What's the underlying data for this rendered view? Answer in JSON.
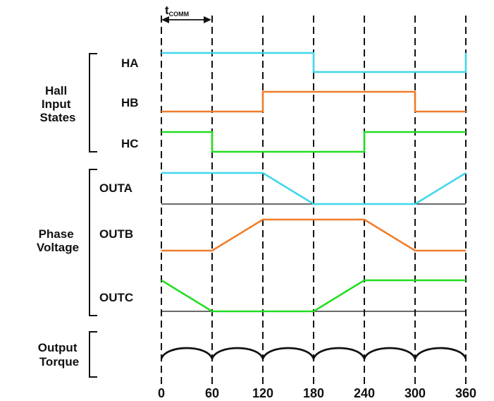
{
  "title_marker": {
    "t": "t",
    "sub": "COMM"
  },
  "x_ticks": [
    "0",
    "60",
    "120",
    "180",
    "240",
    "300",
    "360"
  ],
  "groups": {
    "hall": [
      "Hall",
      "Input",
      "States"
    ],
    "phase": [
      "Phase",
      "Voltage"
    ],
    "torque": [
      "Output",
      "Torque"
    ]
  },
  "signals": {
    "ha": {
      "label": "HA",
      "color": "#3fd7ec"
    },
    "hb": {
      "label": "HB",
      "color": "#f07c2a"
    },
    "hc": {
      "label": "HC",
      "color": "#22dd22"
    },
    "outa": {
      "label": "OUTA",
      "color": "#3fd7ec"
    },
    "outb": {
      "label": "OUTB",
      "color": "#f07c2a"
    },
    "outc": {
      "label": "OUTC",
      "color": "#22dd22"
    }
  },
  "waveforms": {
    "ha": [
      [
        0,
        1
      ],
      [
        180,
        1
      ],
      [
        180,
        0
      ],
      [
        360,
        0
      ],
      [
        360,
        1
      ]
    ],
    "hb": [
      [
        0,
        0
      ],
      [
        120,
        0
      ],
      [
        120,
        1
      ],
      [
        300,
        1
      ],
      [
        300,
        0
      ],
      [
        360,
        0
      ]
    ],
    "hc": [
      [
        0,
        1
      ],
      [
        60,
        1
      ],
      [
        60,
        0
      ],
      [
        240,
        0
      ],
      [
        240,
        1
      ],
      [
        360,
        1
      ]
    ],
    "outa": [
      [
        0,
        1
      ],
      [
        120,
        1
      ],
      [
        180,
        0
      ],
      [
        300,
        0
      ],
      [
        360,
        1
      ]
    ],
    "outb": [
      [
        0,
        0
      ],
      [
        60,
        0
      ],
      [
        120,
        1
      ],
      [
        240,
        1
      ],
      [
        300,
        0
      ],
      [
        360,
        0
      ]
    ],
    "outc": [
      [
        0,
        1
      ],
      [
        60,
        0
      ],
      [
        180,
        0
      ],
      [
        240,
        1
      ],
      [
        360,
        1
      ]
    ]
  }
}
